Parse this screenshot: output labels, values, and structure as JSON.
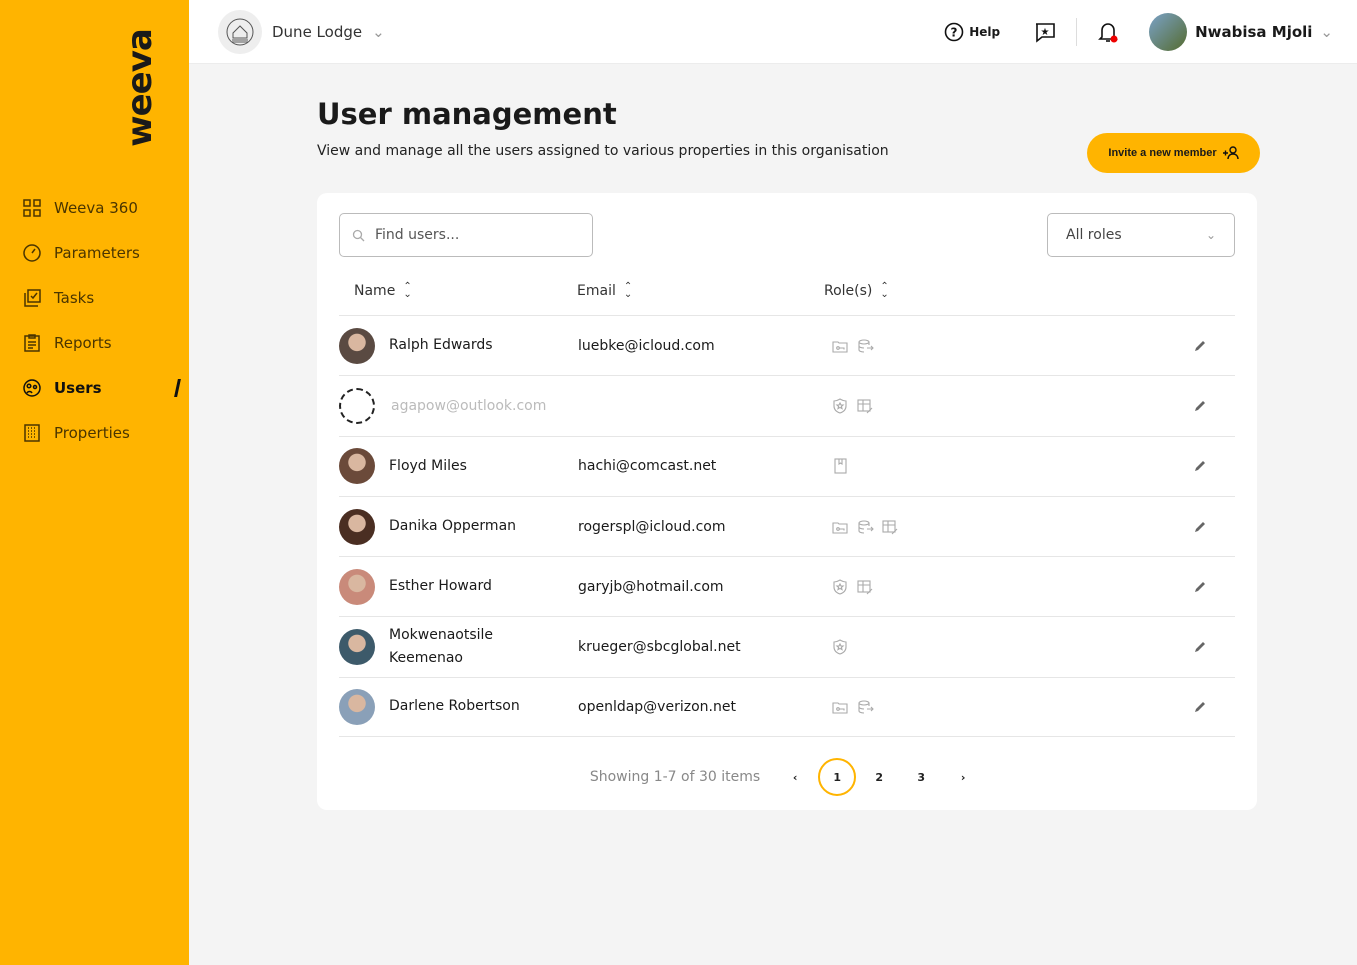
{
  "brand": "weeva",
  "sidebar": {
    "items": [
      {
        "label": "Weeva 360",
        "icon": "grid-icon"
      },
      {
        "label": "Parameters",
        "icon": "gauge-icon"
      },
      {
        "label": "Tasks",
        "icon": "tasks-icon"
      },
      {
        "label": "Reports",
        "icon": "clipboard-icon"
      },
      {
        "label": "Users",
        "icon": "users-icon",
        "active": true
      },
      {
        "label": "Properties",
        "icon": "building-icon"
      }
    ]
  },
  "header": {
    "property": "Dune Lodge",
    "help": "Help",
    "user": "Nwabisa Mjoli"
  },
  "page": {
    "title": "User management",
    "subtitle": "View and manage all the users assigned to various properties in this organisation",
    "invite": "Invite a new member"
  },
  "filters": {
    "search_placeholder": "Find users...",
    "roles": "All roles"
  },
  "columns": [
    "Name",
    "Email",
    "Role(s)"
  ],
  "users": [
    {
      "name": "Ralph Edwards",
      "email": "luebke@icloud.com",
      "roles": [
        "folder-key",
        "database-export"
      ],
      "avatar": "#5a4a42"
    },
    {
      "name": "",
      "email": "agapow@outlook.com",
      "roles": [
        "shield-star",
        "table-edit"
      ],
      "pending": true
    },
    {
      "name": "Floyd Miles",
      "email": "hachi@comcast.net",
      "roles": [
        "book"
      ],
      "avatar": "#6b4a3a"
    },
    {
      "name": "Danika Opperman",
      "email": "rogerspl@icloud.com",
      "roles": [
        "folder-key",
        "database-export",
        "table-edit"
      ],
      "avatar": "#4a2e22"
    },
    {
      "name": "Esther Howard",
      "email": "garyjb@hotmail.com",
      "roles": [
        "shield-star",
        "table-edit"
      ],
      "avatar": "#c98a7a"
    },
    {
      "name": "Mokwenaotsile Keemenao",
      "email": "krueger@sbcglobal.net",
      "roles": [
        "shield-star"
      ],
      "avatar": "#3d5a6a"
    },
    {
      "name": "Darlene Robertson",
      "email": "openldap@verizon.net",
      "roles": [
        "folder-key",
        "database-export"
      ],
      "avatar": "#8aa0b8"
    }
  ],
  "pagination": {
    "summary": "Showing 1-7 of 30 items",
    "pages": [
      "1",
      "2",
      "3"
    ],
    "current": "1"
  },
  "colors": {
    "accent": "#FFB400"
  }
}
